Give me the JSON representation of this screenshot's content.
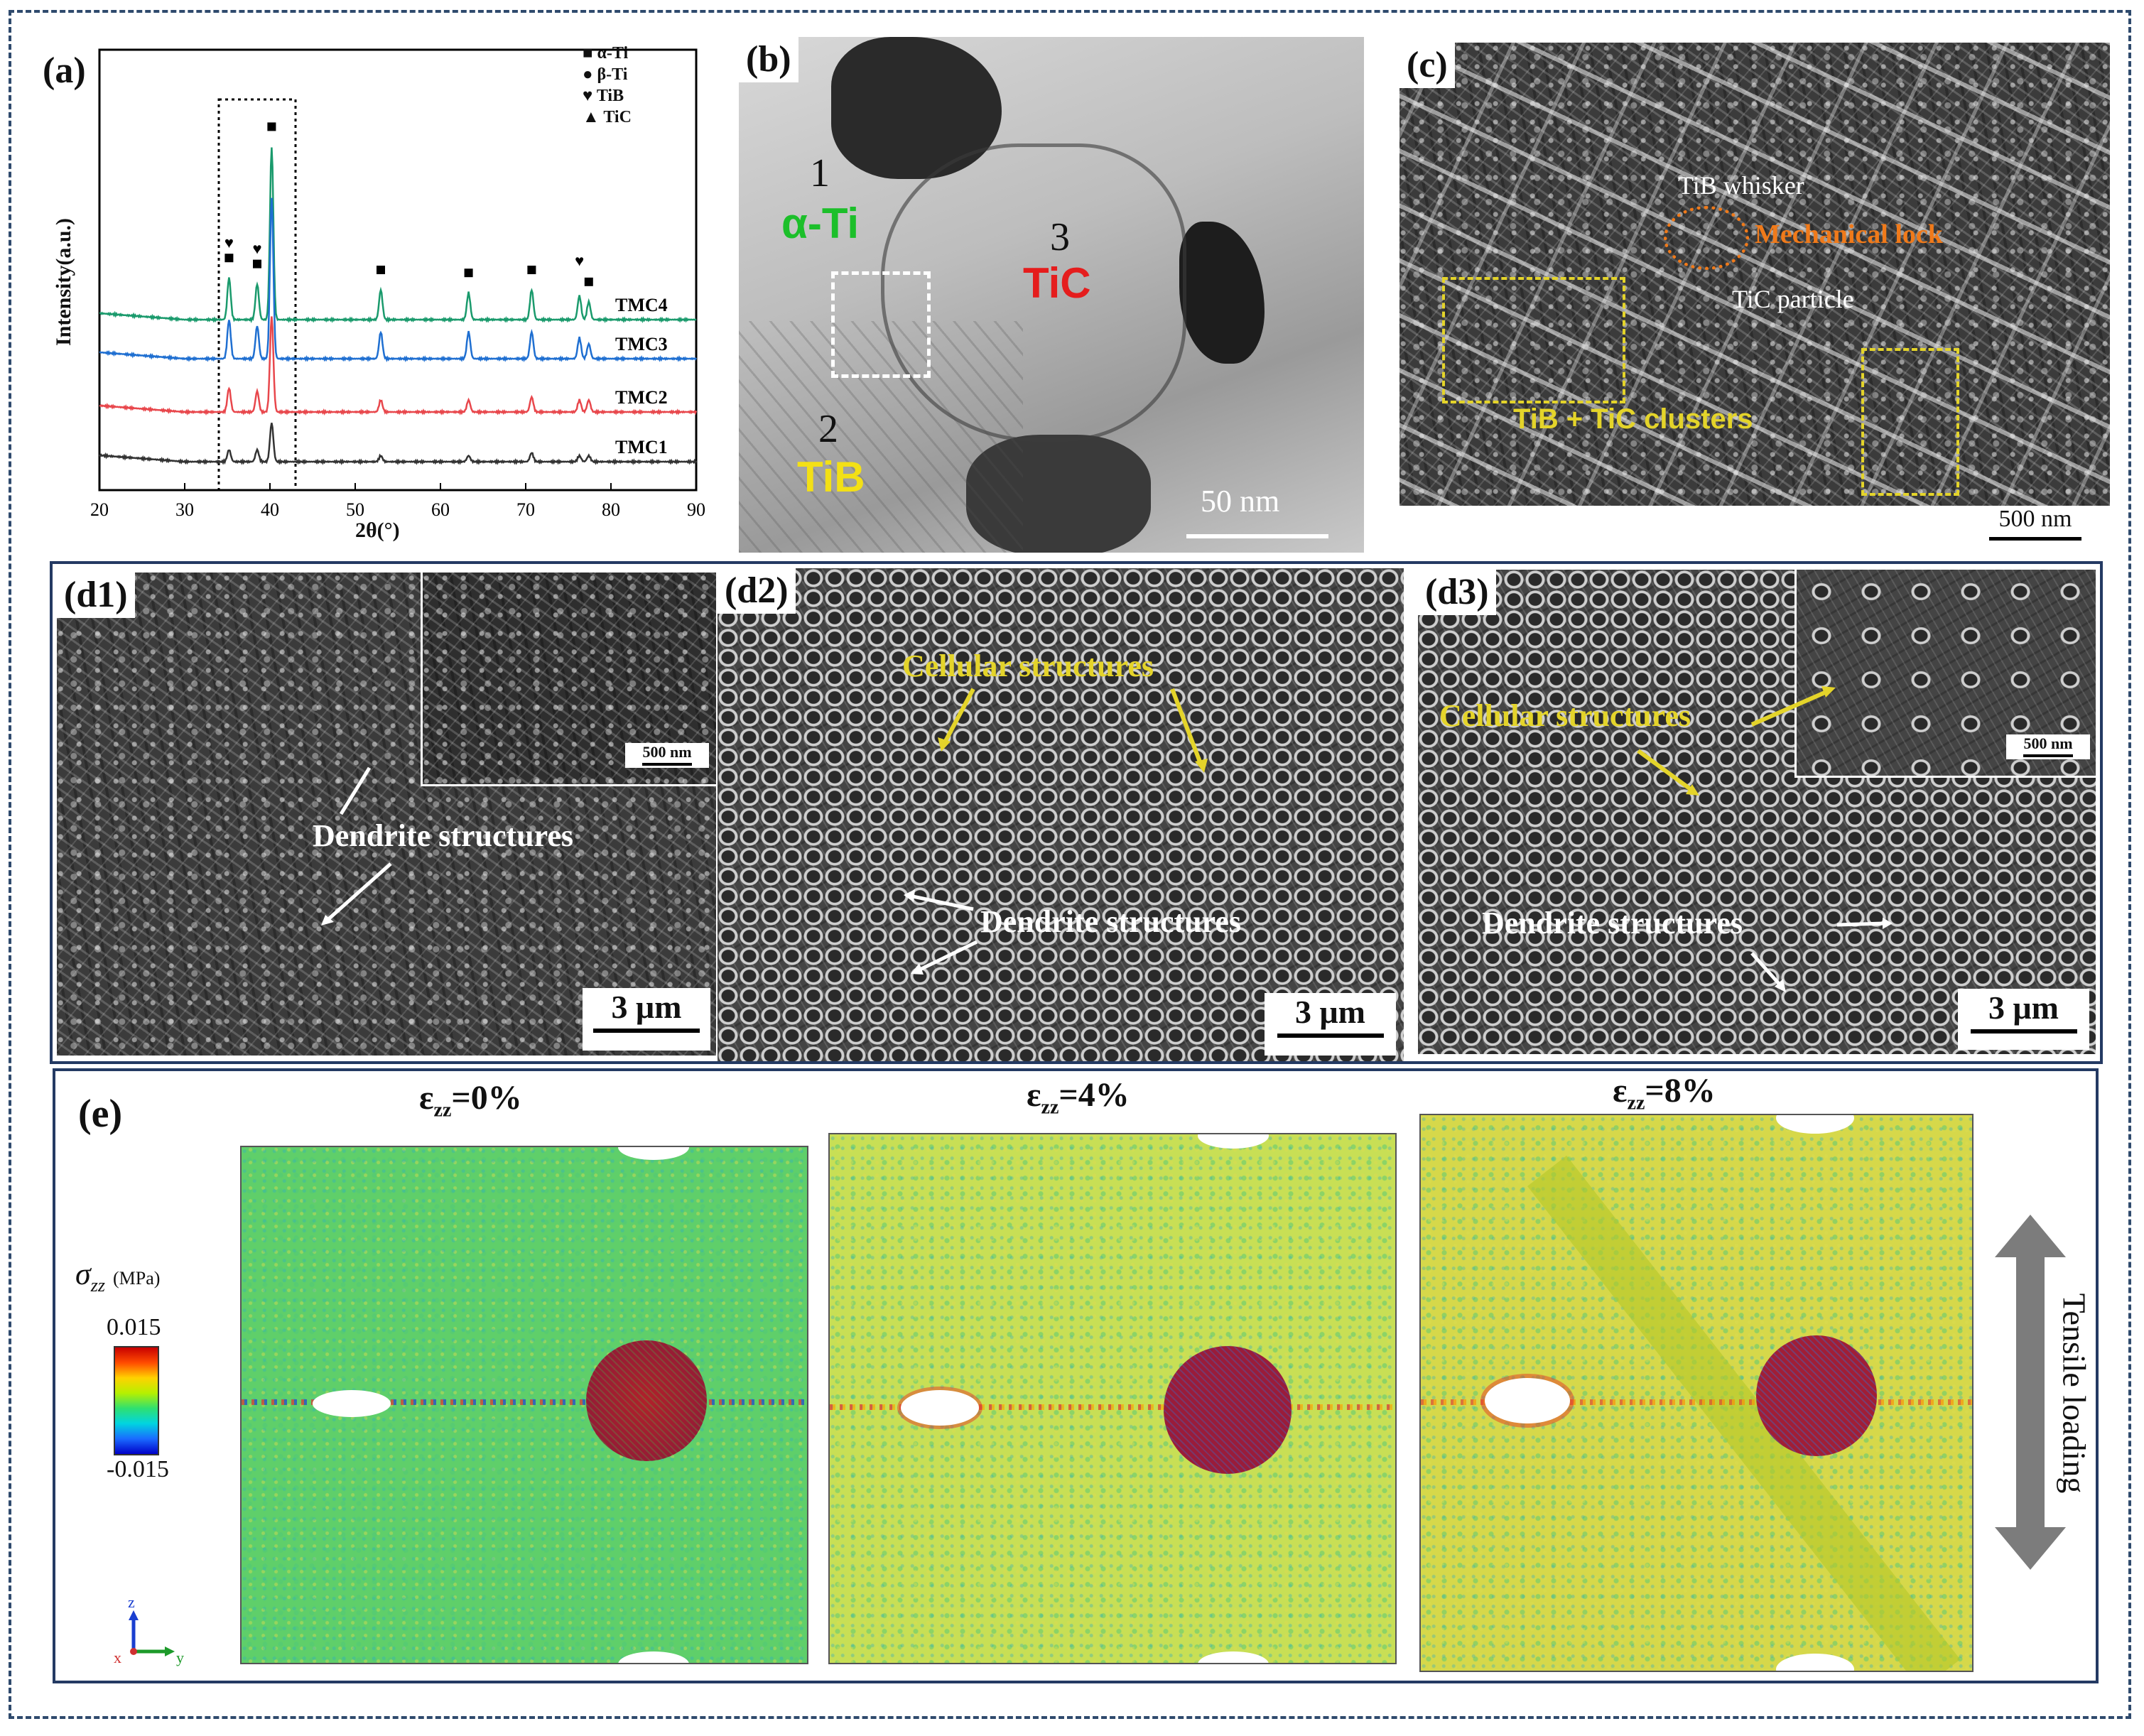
{
  "panel_a": {
    "label": "(a)",
    "ylabel": "Intensity(a.u.)",
    "xlabel": "2θ(°)",
    "xticks": [
      "20",
      "30",
      "40",
      "50",
      "60",
      "70",
      "80",
      "90"
    ],
    "legend": [
      {
        "symbol": "■",
        "text": "α-Ti"
      },
      {
        "symbol": "●",
        "text": "β-Ti"
      },
      {
        "symbol": "♥",
        "text": "TiB"
      },
      {
        "symbol": "▲",
        "text": "TiC"
      }
    ],
    "colors": {
      "TMC4": "#1a9a6c",
      "TMC3": "#1f6fd1",
      "TMC2": "#e8474c",
      "TMC1": "#333333"
    }
  },
  "chart_data": {
    "type": "line",
    "xlabel": "2θ(°)",
    "ylabel": "Intensity(a.u.)",
    "xlim": [
      20,
      90
    ],
    "series": [
      {
        "name": "TMC4",
        "peaks": [
          [
            35.2,
            1.4
          ],
          [
            38.5,
            1.2
          ],
          [
            40.2,
            5.8
          ],
          [
            53.0,
            1.0
          ],
          [
            63.3,
            0.9
          ],
          [
            70.7,
            1.0
          ],
          [
            76.3,
            0.8
          ],
          [
            77.4,
            0.6
          ]
        ]
      },
      {
        "name": "TMC3",
        "peaks": [
          [
            35.2,
            1.3
          ],
          [
            38.5,
            1.1
          ],
          [
            40.2,
            5.4
          ],
          [
            53.0,
            0.9
          ],
          [
            63.3,
            0.9
          ],
          [
            70.7,
            0.9
          ],
          [
            76.3,
            0.7
          ],
          [
            77.4,
            0.5
          ]
        ]
      },
      {
        "name": "TMC2",
        "peaks": [
          [
            35.2,
            0.8
          ],
          [
            38.5,
            0.7
          ],
          [
            40.2,
            3.2
          ],
          [
            53.0,
            0.4
          ],
          [
            63.3,
            0.4
          ],
          [
            70.7,
            0.5
          ],
          [
            76.3,
            0.4
          ],
          [
            77.4,
            0.4
          ]
        ]
      },
      {
        "name": "TMC1",
        "peaks": [
          [
            35.2,
            0.4
          ],
          [
            38.5,
            0.4
          ],
          [
            40.2,
            1.3
          ],
          [
            53.0,
            0.2
          ],
          [
            63.3,
            0.2
          ],
          [
            70.7,
            0.3
          ],
          [
            76.3,
            0.2
          ],
          [
            77.4,
            0.2
          ]
        ]
      }
    ]
  },
  "panel_b": {
    "label": "(b)",
    "n1": "1",
    "phase1": "α-Ti",
    "n2": "2",
    "phase2": "TiB",
    "n3": "3",
    "phase3": "TiC",
    "scale": "50 nm"
  },
  "panel_c": {
    "label": "(c)",
    "whisker": "TiB whisker",
    "lock": "Mechanical lock",
    "particle": "TiC particle",
    "clusters": "TiB + TiC clusters",
    "scale": "500 nm"
  },
  "panel_d1": {
    "label": "(d1)",
    "dendrite": "Dendrite structures",
    "inset_scale": "500 nm",
    "scale": "3 μm"
  },
  "panel_d2": {
    "label": "(d2)",
    "cellular": "Cellular structures",
    "dendrite": "Dendrite structures",
    "scale": "3 μm"
  },
  "panel_d3": {
    "label": "(d3)",
    "cellular": "Cellular structures",
    "dendrite": "Dendrite structures",
    "inset_scale": "500 nm",
    "scale": "3 μm"
  },
  "panel_e": {
    "label": "(e)",
    "eps_symbol": "ε",
    "eps_sub": "zz",
    "strains": [
      "=0%",
      "=4%",
      "=8%"
    ],
    "sigma_symbol": "σ",
    "sigma_sub": "zz",
    "sigma_unit": "(MPa)",
    "cb_max": "0.015",
    "cb_min": "-0.015",
    "axis_z": "z",
    "axis_x": "x",
    "axis_y": "y",
    "loading": "Tensile loading"
  }
}
